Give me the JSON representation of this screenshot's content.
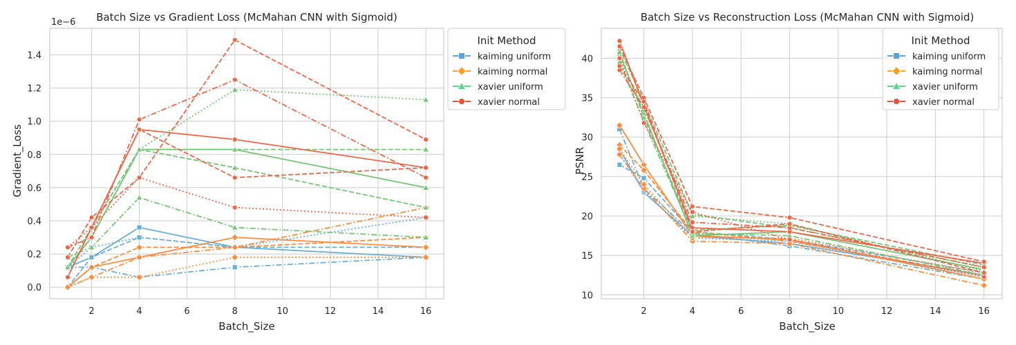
{
  "chart_data": [
    {
      "type": "line",
      "title": "Batch Size vs Gradient Loss (McMahan CNN with Sigmoid)",
      "xlabel": "Batch_Size",
      "ylabel": "Gradient_Loss",
      "offset_text": "1e−6",
      "x": [
        1,
        2,
        4,
        8,
        16
      ],
      "xlim": [
        0.25,
        16.75
      ],
      "ylim": [
        -0.07,
        1.56
      ],
      "xticks": [
        2,
        4,
        6,
        8,
        10,
        12,
        14,
        16
      ],
      "yticks": [
        0.0,
        0.2,
        0.4,
        0.6,
        0.8,
        1.0,
        1.2,
        1.4
      ],
      "ytick_labels": [
        "0.0",
        "0.2",
        "0.4",
        "0.6",
        "0.8",
        "1.0",
        "1.2",
        "1.4"
      ],
      "grid": true,
      "legend": {
        "title": "Init Method",
        "placement": "outside-right-top",
        "entries": [
          "kaiming uniform",
          "kaiming normal",
          "xavier uniform",
          "xavier normal"
        ]
      },
      "series": [
        {
          "init": 0,
          "dash": "solid",
          "values": [
            0.12,
            0.18,
            0.36,
            0.24,
            0.18
          ]
        },
        {
          "init": 0,
          "dash": "dashed",
          "values": [
            0.0,
            0.18,
            0.3,
            0.24,
            0.24
          ]
        },
        {
          "init": 0,
          "dash": "dashdot",
          "values": [
            0.12,
            0.12,
            0.06,
            0.12,
            0.18
          ]
        },
        {
          "init": 0,
          "dash": "dotted",
          "values": [
            0.12,
            0.24,
            0.3,
            0.24,
            0.42
          ]
        },
        {
          "init": 1,
          "dash": "solid",
          "values": [
            0.0,
            0.12,
            0.18,
            0.3,
            0.24
          ]
        },
        {
          "init": 1,
          "dash": "dashed",
          "values": [
            0.0,
            0.12,
            0.24,
            0.24,
            0.3
          ]
        },
        {
          "init": 1,
          "dash": "dashdot",
          "values": [
            0.0,
            0.06,
            0.18,
            0.24,
            0.48
          ]
        },
        {
          "init": 1,
          "dash": "dotted",
          "values": [
            0.0,
            0.06,
            0.06,
            0.18,
            0.18
          ]
        },
        {
          "init": 2,
          "dash": "solid",
          "values": [
            0.12,
            0.3,
            0.83,
            0.83,
            0.6
          ]
        },
        {
          "init": 2,
          "dash": "dashed",
          "values": [
            0.12,
            0.36,
            0.83,
            0.83,
            0.83
          ]
        },
        {
          "init": 2,
          "dash": "dashdot",
          "values": [
            0.18,
            0.24,
            0.54,
            0.36,
            0.3
          ]
        },
        {
          "init": 2,
          "dash": "dotted",
          "values": [
            0.12,
            0.36,
            0.83,
            1.19,
            1.13
          ]
        },
        {
          "init": 2,
          "dash": "dashed",
          "values": [
            0.12,
            0.3,
            0.83,
            0.72,
            0.48
          ]
        },
        {
          "init": 3,
          "dash": "solid",
          "values": [
            0.06,
            0.36,
            0.95,
            0.89,
            0.72
          ]
        },
        {
          "init": 3,
          "dash": "dashed",
          "values": [
            0.18,
            0.42,
            0.66,
            1.49,
            0.89
          ]
        },
        {
          "init": 3,
          "dash": "dashdot",
          "values": [
            0.24,
            0.3,
            1.01,
            1.25,
            0.66
          ]
        },
        {
          "init": 3,
          "dash": "dotted",
          "values": [
            0.24,
            0.36,
            0.66,
            0.48,
            0.42
          ]
        },
        {
          "init": 3,
          "dash": "dashed",
          "values": [
            0.06,
            0.36,
            0.95,
            0.66,
            0.72
          ]
        }
      ]
    },
    {
      "type": "line",
      "title": "Batch Size vs Reconstruction Loss (McMahan CNN with Sigmoid)",
      "xlabel": "Batch_Size",
      "ylabel": "PSNR",
      "x": [
        1,
        2,
        4,
        8,
        16
      ],
      "xlim": [
        0.25,
        16.75
      ],
      "ylim": [
        9.5,
        43.8
      ],
      "xticks": [
        2,
        4,
        6,
        8,
        10,
        12,
        14,
        16
      ],
      "yticks": [
        10,
        15,
        20,
        25,
        30,
        35,
        40
      ],
      "ytick_labels": [
        "10",
        "15",
        "20",
        "25",
        "30",
        "35",
        "40"
      ],
      "grid": true,
      "legend": {
        "title": "Init Method",
        "placement": "top-right",
        "entries": [
          "kaiming uniform",
          "kaiming normal",
          "xavier uniform",
          "xavier normal"
        ]
      },
      "series": [
        {
          "init": 0,
          "dash": "solid",
          "values": [
            28.5,
            23.0,
            17.5,
            16.5,
            12.5
          ]
        },
        {
          "init": 0,
          "dash": "dashed",
          "values": [
            26.5,
            24.8,
            18.0,
            17.0,
            12.8
          ]
        },
        {
          "init": 0,
          "dash": "dashdot",
          "values": [
            31.0,
            23.5,
            17.8,
            16.2,
            12.0
          ]
        },
        {
          "init": 0,
          "dash": "dotted",
          "values": [
            27.8,
            23.2,
            17.2,
            16.8,
            12.3
          ]
        },
        {
          "init": 1,
          "dash": "solid",
          "values": [
            31.5,
            26.5,
            17.5,
            17.0,
            12.0
          ]
        },
        {
          "init": 1,
          "dash": "dashed",
          "values": [
            29.0,
            25.8,
            18.0,
            16.8,
            12.5
          ]
        },
        {
          "init": 1,
          "dash": "dashdot",
          "values": [
            27.8,
            23.5,
            16.8,
            16.5,
            11.2
          ]
        },
        {
          "init": 1,
          "dash": "dotted",
          "values": [
            28.5,
            24.0,
            17.2,
            17.2,
            12.8
          ]
        },
        {
          "init": 2,
          "dash": "solid",
          "values": [
            40.5,
            33.0,
            17.5,
            18.0,
            13.2
          ]
        },
        {
          "init": 2,
          "dash": "dashed",
          "values": [
            41.2,
            34.5,
            20.2,
            18.5,
            13.5
          ]
        },
        {
          "init": 2,
          "dash": "dashdot",
          "values": [
            39.5,
            32.0,
            17.8,
            17.5,
            12.5
          ]
        },
        {
          "init": 2,
          "dash": "dotted",
          "values": [
            40.0,
            33.5,
            20.0,
            19.0,
            13.0
          ]
        },
        {
          "init": 2,
          "dash": "dashed",
          "values": [
            40.8,
            32.5,
            18.2,
            18.8,
            13.8
          ]
        },
        {
          "init": 3,
          "dash": "solid",
          "values": [
            42.2,
            34.0,
            18.5,
            18.0,
            14.0
          ]
        },
        {
          "init": 3,
          "dash": "dashed",
          "values": [
            41.5,
            35.0,
            21.2,
            19.8,
            14.2
          ]
        },
        {
          "init": 3,
          "dash": "dashdot",
          "values": [
            38.5,
            33.8,
            19.2,
            18.5,
            13.5
          ]
        },
        {
          "init": 3,
          "dash": "dotted",
          "values": [
            40.0,
            31.8,
            20.5,
            17.0,
            12.3
          ]
        },
        {
          "init": 3,
          "dash": "dashed",
          "values": [
            39.0,
            34.5,
            18.0,
            19.0,
            12.8
          ]
        }
      ]
    }
  ],
  "style": {
    "init_colors": [
      "#6aaed6",
      "#fd8d3c",
      "#74c476",
      "#ef6548"
    ],
    "legend_colors": [
      "#5ba3d9",
      "#ff9f1c",
      "#5ed38f",
      "#e8533a"
    ],
    "markers": [
      "square",
      "diamond",
      "triangle",
      "circle"
    ],
    "grid_color": "#cccccc",
    "spine_color": "#cccccc"
  }
}
